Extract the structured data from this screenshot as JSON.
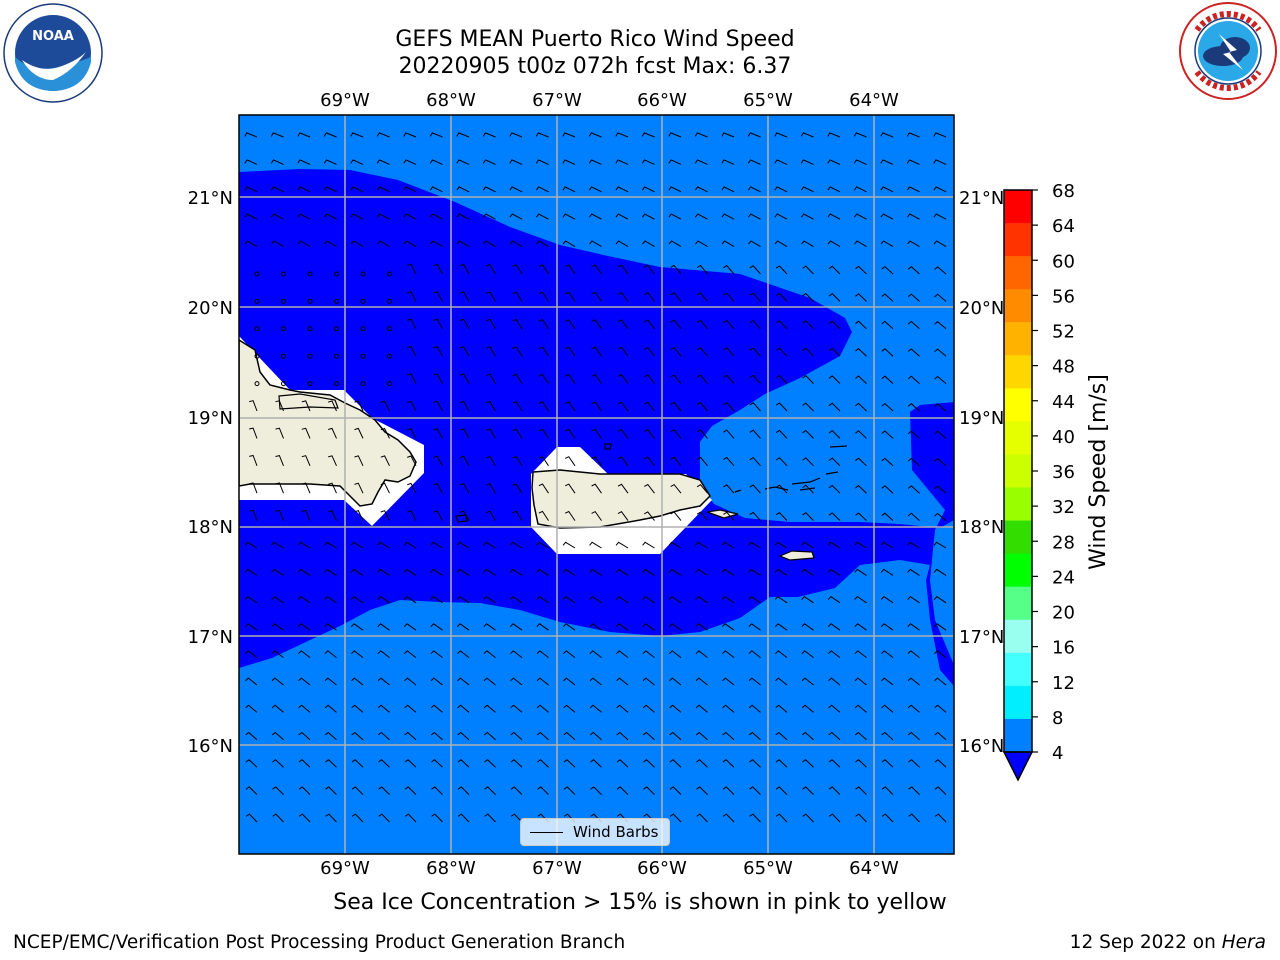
{
  "header": {
    "title_line1": "GEFS MEAN Puerto Rico Wind Speed",
    "title_line2": "20220905 t00z 072h fcst   Max: 6.37"
  },
  "logos": {
    "noaa": {
      "text": "NOAA",
      "ring_text": "NATIONAL OCEANIC AND ATMOSPHERIC ADMINISTRATION · U.S. DEPARTMENT OF COMMERCE"
    },
    "nws": {
      "ring_text": "NATIONAL WEATHER SERVICE"
    }
  },
  "map": {
    "lon_labels": [
      "69°W",
      "68°W",
      "67°W",
      "66°W",
      "65°W",
      "64°W"
    ],
    "lat_labels": [
      "21°N",
      "20°N",
      "19°N",
      "18°N",
      "17°N",
      "16°N"
    ],
    "legend_label": "Wind Barbs",
    "colors": {
      "band_4_8": "#0080ff",
      "under_4": "#0000ff",
      "land": "#efeedc",
      "grid": "#b0b0b0"
    }
  },
  "colorbar": {
    "title": "Wind Speed [m/s]",
    "ticks": [
      "68",
      "64",
      "60",
      "56",
      "52",
      "48",
      "44",
      "40",
      "36",
      "32",
      "28",
      "24",
      "20",
      "16",
      "12",
      "8",
      "4"
    ],
    "colors_top_to_bottom": [
      "#ff0000",
      "#ff3300",
      "#ff6600",
      "#ff8c00",
      "#ffb300",
      "#ffd700",
      "#ffff00",
      "#e6ff00",
      "#ccff00",
      "#99ff00",
      "#33dd00",
      "#00ff00",
      "#55ff88",
      "#99ffee",
      "#44ffff",
      "#00eeff",
      "#0080ff"
    ],
    "under_color": "#0000ff"
  },
  "note": "Sea Ice Concentration > 15% is shown in pink to yellow",
  "footer": {
    "left": "NCEP/EMC/Verification Post Processing Product Generation Branch",
    "right_date": "12 Sep 2022 on",
    "right_system": "Hera"
  }
}
